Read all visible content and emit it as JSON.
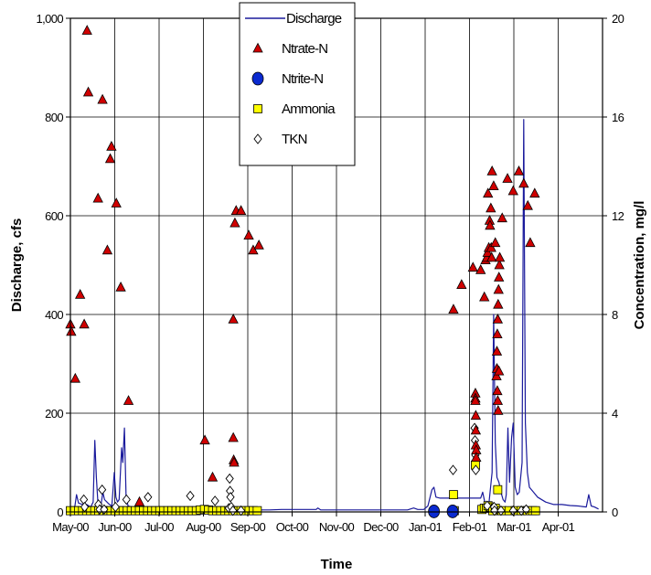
{
  "chart_data": {
    "type": "line",
    "title": "",
    "xlabel": "Time",
    "ylabel_left": "Discharge, cfs",
    "ylabel_right": "Concentration, mg/l",
    "ylim_left": [
      0,
      1000
    ],
    "ylim_right": [
      0,
      20
    ],
    "y_ticks_left": [
      "0",
      "200",
      "400",
      "600",
      "800",
      "1,000"
    ],
    "y_ticks_right": [
      "0",
      "4",
      "8",
      "12",
      "16",
      "20"
    ],
    "x_tick_labels": [
      "May-00",
      "Jun-00",
      "Jul-00",
      "Aug-00",
      "Sep-00",
      "Oct-00",
      "Nov-00",
      "Dec-00",
      "Jan-01",
      "Feb-01",
      "Mar-01",
      "Apr-01"
    ],
    "grid": "vertical and horizontal major gridlines",
    "legend_position": "top-center",
    "colors": {
      "discharge": "#1a1a9c",
      "nitrate": "#d00000",
      "nitrite": "#0a2ad0",
      "ammonia": "#ffff00",
      "tkn": "#ffffff"
    },
    "series": [
      {
        "name": "Discharge",
        "axis": "left",
        "unit": "cfs",
        "points": [
          [
            0.0,
            5
          ],
          [
            1.0,
            5
          ],
          [
            1.5,
            35
          ],
          [
            2.0,
            18
          ],
          [
            3.0,
            15
          ],
          [
            4.0,
            15
          ],
          [
            5.0,
            10
          ],
          [
            5.6,
            20
          ],
          [
            6.0,
            145
          ],
          [
            6.4,
            70
          ],
          [
            6.8,
            15
          ],
          [
            7.5,
            12
          ],
          [
            8.0,
            40
          ],
          [
            8.4,
            25
          ],
          [
            9.0,
            20
          ],
          [
            9.5,
            16
          ],
          [
            10.2,
            12
          ],
          [
            10.8,
            80
          ],
          [
            11.2,
            30
          ],
          [
            11.6,
            20
          ],
          [
            12.0,
            25
          ],
          [
            12.6,
            130
          ],
          [
            12.9,
            100
          ],
          [
            13.3,
            170
          ],
          [
            13.7,
            30
          ],
          [
            14.2,
            12
          ],
          [
            15.0,
            10
          ],
          [
            16.0,
            8
          ],
          [
            17.0,
            8
          ],
          [
            18.0,
            8
          ],
          [
            20.0,
            5
          ],
          [
            22.0,
            5
          ],
          [
            25.0,
            4
          ],
          [
            28.0,
            4
          ],
          [
            31.0,
            4
          ],
          [
            34.0,
            4
          ],
          [
            37.0,
            4
          ],
          [
            40.0,
            4
          ],
          [
            43.0,
            4
          ],
          [
            46.0,
            4
          ],
          [
            49.0,
            4
          ],
          [
            52.0,
            5
          ],
          [
            55.0,
            5
          ],
          [
            58.0,
            5
          ],
          [
            60.5,
            5
          ],
          [
            60.9,
            8
          ],
          [
            61.6,
            4
          ],
          [
            64.0,
            4
          ],
          [
            68.0,
            4
          ],
          [
            72.0,
            4
          ],
          [
            76.0,
            4
          ],
          [
            80.0,
            4
          ],
          [
            83.0,
            4
          ],
          [
            84.5,
            8
          ],
          [
            85.5,
            5
          ],
          [
            87.0,
            5
          ],
          [
            88.0,
            12
          ],
          [
            89.0,
            45
          ],
          [
            89.5,
            50
          ],
          [
            90.0,
            30
          ],
          [
            91.0,
            28
          ],
          [
            94.0,
            28
          ],
          [
            96.0,
            28
          ],
          [
            98.0,
            28
          ],
          [
            100.0,
            28
          ],
          [
            101.0,
            28
          ],
          [
            101.5,
            40
          ],
          [
            102.0,
            20
          ],
          [
            103.0,
            15
          ],
          [
            103.8,
            80
          ],
          [
            104.2,
            400
          ],
          [
            104.6,
            140
          ],
          [
            105.0,
            70
          ],
          [
            105.5,
            60
          ],
          [
            106.0,
            40
          ],
          [
            106.5,
            25
          ],
          [
            107.0,
            20
          ],
          [
            107.3,
            35
          ],
          [
            107.7,
            170
          ],
          [
            108.1,
            60
          ],
          [
            108.6,
            150
          ],
          [
            109.0,
            180
          ],
          [
            109.5,
            50
          ],
          [
            110.0,
            35
          ],
          [
            110.5,
            40
          ],
          [
            111.2,
            100
          ],
          [
            111.6,
            795
          ],
          [
            112.0,
            180
          ],
          [
            112.5,
            80
          ],
          [
            113.0,
            50
          ],
          [
            114.0,
            40
          ],
          [
            115.0,
            30
          ],
          [
            117.0,
            20
          ],
          [
            119.0,
            15
          ],
          [
            121.0,
            15
          ],
          [
            123.0,
            13
          ],
          [
            125.0,
            12
          ],
          [
            127.0,
            10
          ],
          [
            127.6,
            35
          ],
          [
            128.2,
            12
          ],
          [
            129.0,
            10
          ],
          [
            130.0,
            6
          ]
        ]
      },
      {
        "name": "Ntrate-N",
        "axis": "right",
        "unit": "mg/l",
        "points": [
          [
            0.0,
            7.6
          ],
          [
            0.2,
            7.3
          ],
          [
            1.2,
            5.4
          ],
          [
            2.4,
            8.8
          ],
          [
            3.4,
            7.6
          ],
          [
            4.1,
            19.5
          ],
          [
            4.4,
            17.0
          ],
          [
            6.8,
            12.7
          ],
          [
            7.9,
            16.7
          ],
          [
            9.1,
            10.6
          ],
          [
            9.8,
            14.3
          ],
          [
            10.1,
            14.8
          ],
          [
            11.3,
            12.5
          ],
          [
            12.4,
            9.1
          ],
          [
            14.3,
            4.5
          ],
          [
            17.0,
            0.4
          ],
          [
            33.1,
            2.9
          ],
          [
            35.0,
            1.4
          ],
          [
            40.1,
            7.8
          ],
          [
            40.1,
            3.0
          ],
          [
            40.2,
            2.1
          ],
          [
            40.3,
            2.0
          ],
          [
            40.5,
            11.7
          ],
          [
            40.8,
            12.2
          ],
          [
            42.0,
            12.2
          ],
          [
            43.9,
            11.2
          ],
          [
            45.0,
            10.6
          ],
          [
            46.4,
            10.8
          ],
          [
            94.3,
            8.2
          ],
          [
            96.3,
            9.2
          ],
          [
            99.1,
            9.9
          ],
          [
            99.7,
            4.8
          ],
          [
            99.7,
            4.6
          ],
          [
            99.7,
            4.5
          ],
          [
            99.8,
            3.9
          ],
          [
            99.8,
            3.3
          ],
          [
            99.8,
            2.7
          ],
          [
            99.9,
            2.5
          ],
          [
            99.9,
            2.2
          ],
          [
            101.0,
            9.8
          ],
          [
            101.9,
            8.7
          ],
          [
            102.2,
            10.2
          ],
          [
            102.5,
            10.3
          ],
          [
            102.7,
            10.5
          ],
          [
            102.8,
            12.9
          ],
          [
            103.0,
            10.7
          ],
          [
            103.2,
            11.8
          ],
          [
            103.3,
            11.6
          ],
          [
            103.5,
            12.3
          ],
          [
            103.6,
            10.7
          ],
          [
            103.7,
            10.3
          ],
          [
            103.8,
            13.8
          ],
          [
            104.2,
            13.2
          ],
          [
            104.6,
            10.9
          ],
          [
            105.0,
            6.5
          ],
          [
            105.1,
            7.2
          ],
          [
            105.2,
            7.8
          ],
          [
            105.3,
            8.4
          ],
          [
            105.4,
            9.0
          ],
          [
            105.5,
            9.5
          ],
          [
            105.6,
            10.0
          ],
          [
            105.7,
            10.3
          ],
          [
            104.9,
            5.5
          ],
          [
            105.0,
            5.8
          ],
          [
            105.1,
            4.9
          ],
          [
            105.2,
            4.5
          ],
          [
            105.3,
            4.1
          ],
          [
            105.5,
            5.7
          ],
          [
            106.3,
            11.9
          ],
          [
            107.6,
            13.5
          ],
          [
            109.0,
            13.0
          ],
          [
            110.4,
            13.8
          ],
          [
            111.6,
            13.3
          ],
          [
            112.6,
            12.4
          ],
          [
            113.2,
            10.9
          ],
          [
            114.3,
            12.9
          ]
        ]
      },
      {
        "name": "Ntrite-N",
        "axis": "right",
        "unit": "mg/l",
        "points": [
          [
            89.5,
            0.02
          ],
          [
            94.1,
            0.02
          ]
        ]
      },
      {
        "name": "Ammonia",
        "axis": "right",
        "unit": "mg/l",
        "points": [
          [
            0.0,
            0.05
          ],
          [
            1.0,
            0.05
          ],
          [
            2.0,
            0.05
          ],
          [
            3.0,
            0.05
          ],
          [
            4.0,
            0.05
          ],
          [
            5.0,
            0.05
          ],
          [
            6.0,
            0.05
          ],
          [
            7.0,
            0.05
          ],
          [
            8.0,
            0.05
          ],
          [
            9.0,
            0.05
          ],
          [
            10.0,
            0.05
          ],
          [
            11.0,
            0.05
          ],
          [
            12.0,
            0.05
          ],
          [
            13.0,
            0.05
          ],
          [
            14.0,
            0.05
          ],
          [
            15.0,
            0.05
          ],
          [
            16.0,
            0.05
          ],
          [
            17.0,
            0.05
          ],
          [
            18.0,
            0.05
          ],
          [
            19.0,
            0.05
          ],
          [
            20.0,
            0.05
          ],
          [
            21.0,
            0.05
          ],
          [
            22.0,
            0.05
          ],
          [
            23.0,
            0.05
          ],
          [
            24.0,
            0.05
          ],
          [
            25.0,
            0.05
          ],
          [
            26.0,
            0.05
          ],
          [
            27.0,
            0.05
          ],
          [
            28.0,
            0.05
          ],
          [
            29.0,
            0.05
          ],
          [
            30.0,
            0.05
          ],
          [
            31.0,
            0.05
          ],
          [
            32.0,
            0.08
          ],
          [
            33.0,
            0.1
          ],
          [
            34.0,
            0.08
          ],
          [
            35.0,
            0.05
          ],
          [
            36.0,
            0.05
          ],
          [
            37.0,
            0.05
          ],
          [
            38.0,
            0.05
          ],
          [
            39.0,
            0.05
          ],
          [
            40.0,
            0.05
          ],
          [
            41.0,
            0.05
          ],
          [
            42.0,
            0.05
          ],
          [
            43.0,
            0.05
          ],
          [
            44.0,
            0.05
          ],
          [
            45.0,
            0.05
          ],
          [
            46.0,
            0.05
          ],
          [
            94.3,
            0.7
          ],
          [
            94.5,
            0.05
          ],
          [
            99.7,
            1.9
          ],
          [
            101.3,
            0.1
          ],
          [
            101.9,
            0.15
          ],
          [
            102.4,
            0.15
          ],
          [
            102.8,
            0.25
          ],
          [
            103.3,
            0.2
          ],
          [
            104.0,
            0.05
          ],
          [
            104.6,
            0.15
          ],
          [
            105.2,
            0.9
          ],
          [
            106.2,
            0.05
          ],
          [
            108.0,
            0.05
          ],
          [
            109.5,
            0.05
          ],
          [
            111.0,
            0.05
          ],
          [
            112.5,
            0.05
          ],
          [
            113.8,
            0.05
          ],
          [
            114.5,
            0.05
          ]
        ]
      },
      {
        "name": "TKN",
        "axis": "right",
        "unit": "mg/l",
        "points": [
          [
            3.3,
            0.5
          ],
          [
            3.5,
            0.2
          ],
          [
            6.9,
            0.3
          ],
          [
            7.2,
            0.1
          ],
          [
            7.8,
            0.9
          ],
          [
            8.3,
            0.1
          ],
          [
            11.1,
            0.2
          ],
          [
            13.8,
            0.5
          ],
          [
            19.1,
            0.6
          ],
          [
            29.5,
            0.65
          ],
          [
            35.6,
            0.45
          ],
          [
            39.0,
            0.15
          ],
          [
            39.2,
            1.35
          ],
          [
            39.3,
            0.85
          ],
          [
            39.4,
            0.6
          ],
          [
            39.6,
            0.2
          ],
          [
            40.0,
            0.05
          ],
          [
            42.0,
            0.05
          ],
          [
            94.2,
            1.7
          ],
          [
            99.5,
            3.4
          ],
          [
            99.6,
            2.9
          ],
          [
            99.7,
            2.3
          ],
          [
            99.8,
            1.7
          ],
          [
            102.6,
            0.25
          ],
          [
            104.3,
            0.2
          ],
          [
            104.4,
            0.05
          ],
          [
            106.0,
            0.05
          ],
          [
            109.0,
            0.05
          ],
          [
            111.0,
            0.05
          ],
          [
            112.2,
            0.1
          ]
        ]
      }
    ],
    "legend": [
      {
        "key": "discharge",
        "label": "Discharge",
        "marker": "line"
      },
      {
        "key": "nitrate",
        "label": "Ntrate-N",
        "marker": "triangle"
      },
      {
        "key": "nitrite",
        "label": "Ntrite-N",
        "marker": "circle"
      },
      {
        "key": "ammonia",
        "label": "Ammonia",
        "marker": "square"
      },
      {
        "key": "tkn",
        "label": "TKN",
        "marker": "diamond"
      }
    ]
  }
}
